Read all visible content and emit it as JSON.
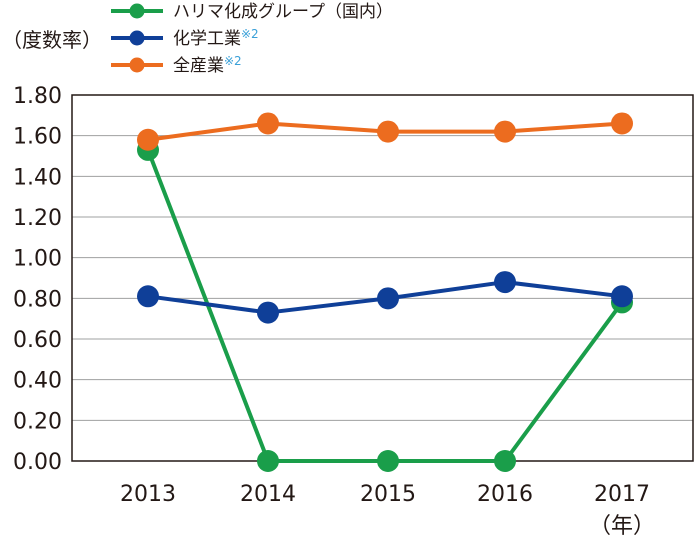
{
  "chart_data": {
    "type": "line",
    "title": "",
    "ylabel": "（度数率）",
    "xlabel": "（年）",
    "categories": [
      "2013",
      "2014",
      "2015",
      "2016",
      "2017"
    ],
    "ylim": [
      0,
      1.8
    ],
    "yticks": [
      "0.00",
      "0.20",
      "0.40",
      "0.60",
      "0.80",
      "1.00",
      "1.20",
      "1.40",
      "1.60",
      "1.80"
    ],
    "grid": true,
    "legend_position": "top-left",
    "series": [
      {
        "name": "ハリマ化成グループ（国内）",
        "note": "",
        "color": "#1a9e4a",
        "values": [
          1.53,
          0.0,
          0.0,
          0.0,
          0.78
        ]
      },
      {
        "name": "化学工業",
        "note": "※2",
        "color": "#0f3f98",
        "values": [
          0.81,
          0.73,
          0.8,
          0.88,
          0.81
        ]
      },
      {
        "name": "全産業",
        "note": "※2",
        "color": "#ec6c1f",
        "values": [
          1.58,
          1.66,
          1.62,
          1.62,
          1.66
        ]
      }
    ],
    "note_color": "#3aa0d8"
  }
}
